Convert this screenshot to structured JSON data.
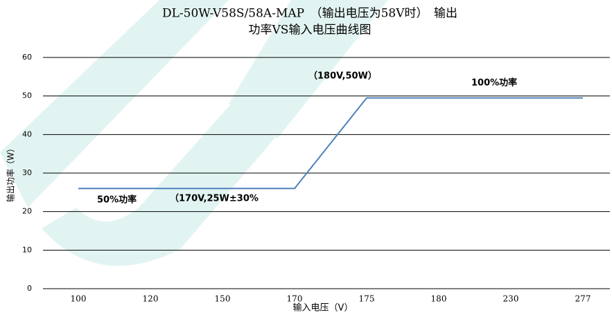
{
  "chart_data": {
    "type": "line",
    "title": [
      "DL-50W-V58S/58A-MAP　（输出电压为58V时）　输出",
      "功率VS输入电压曲线图"
    ],
    "x_label": "输入电压（V）",
    "y_label": "输出功率（W）",
    "categories": [
      "100",
      "120",
      "150",
      "170",
      "175",
      "180",
      "230",
      "277"
    ],
    "series": [
      {
        "color": "#4f81bd",
        "values": [
          26,
          26,
          26,
          26,
          49.5,
          49.5,
          49.5,
          49.5
        ]
      }
    ],
    "ylim": [
      0,
      60
    ],
    "yticks": [
      0,
      10,
      20,
      30,
      40,
      50,
      60
    ],
    "grid": true,
    "annotations": [
      "（180V,50W）",
      "100%功率",
      "50%功率",
      "（170V,25W±30%"
    ]
  }
}
